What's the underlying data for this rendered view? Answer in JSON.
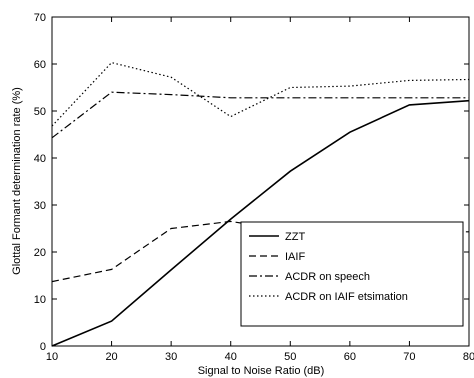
{
  "chart_data": {
    "type": "line",
    "xlabel": "Signal to Noise Ratio (dB)",
    "ylabel": "Glottal Formant determination rate (%)",
    "xlim": [
      10,
      80
    ],
    "ylim": [
      0,
      70
    ],
    "xticks": [
      10,
      20,
      30,
      40,
      50,
      60,
      70,
      80
    ],
    "yticks": [
      0,
      10,
      20,
      30,
      40,
      50,
      60,
      70
    ],
    "grid": false,
    "legend_position": "bottom-right",
    "x": [
      10,
      20,
      30,
      40,
      50,
      60,
      70,
      80
    ],
    "series": [
      {
        "name": "ZZT",
        "style": "solid",
        "values": [
          0,
          5.3,
          16.2,
          27,
          37.2,
          45.5,
          51.3,
          52.2
        ]
      },
      {
        "name": "IAIF",
        "style": "dashed",
        "values": [
          13.7,
          16.3,
          25,
          26.5,
          24.5,
          24.3,
          24.3,
          24.3
        ]
      },
      {
        "name": "ACDR on speech",
        "style": "dashdot",
        "values": [
          44.3,
          54,
          53.5,
          52.8,
          52.8,
          52.8,
          52.8,
          52.8
        ]
      },
      {
        "name": "ACDR on IAIF etsimation",
        "style": "dotted",
        "values": [
          46.8,
          60.3,
          57.2,
          48.8,
          55,
          55.3,
          56.5,
          56.7
        ]
      }
    ]
  }
}
